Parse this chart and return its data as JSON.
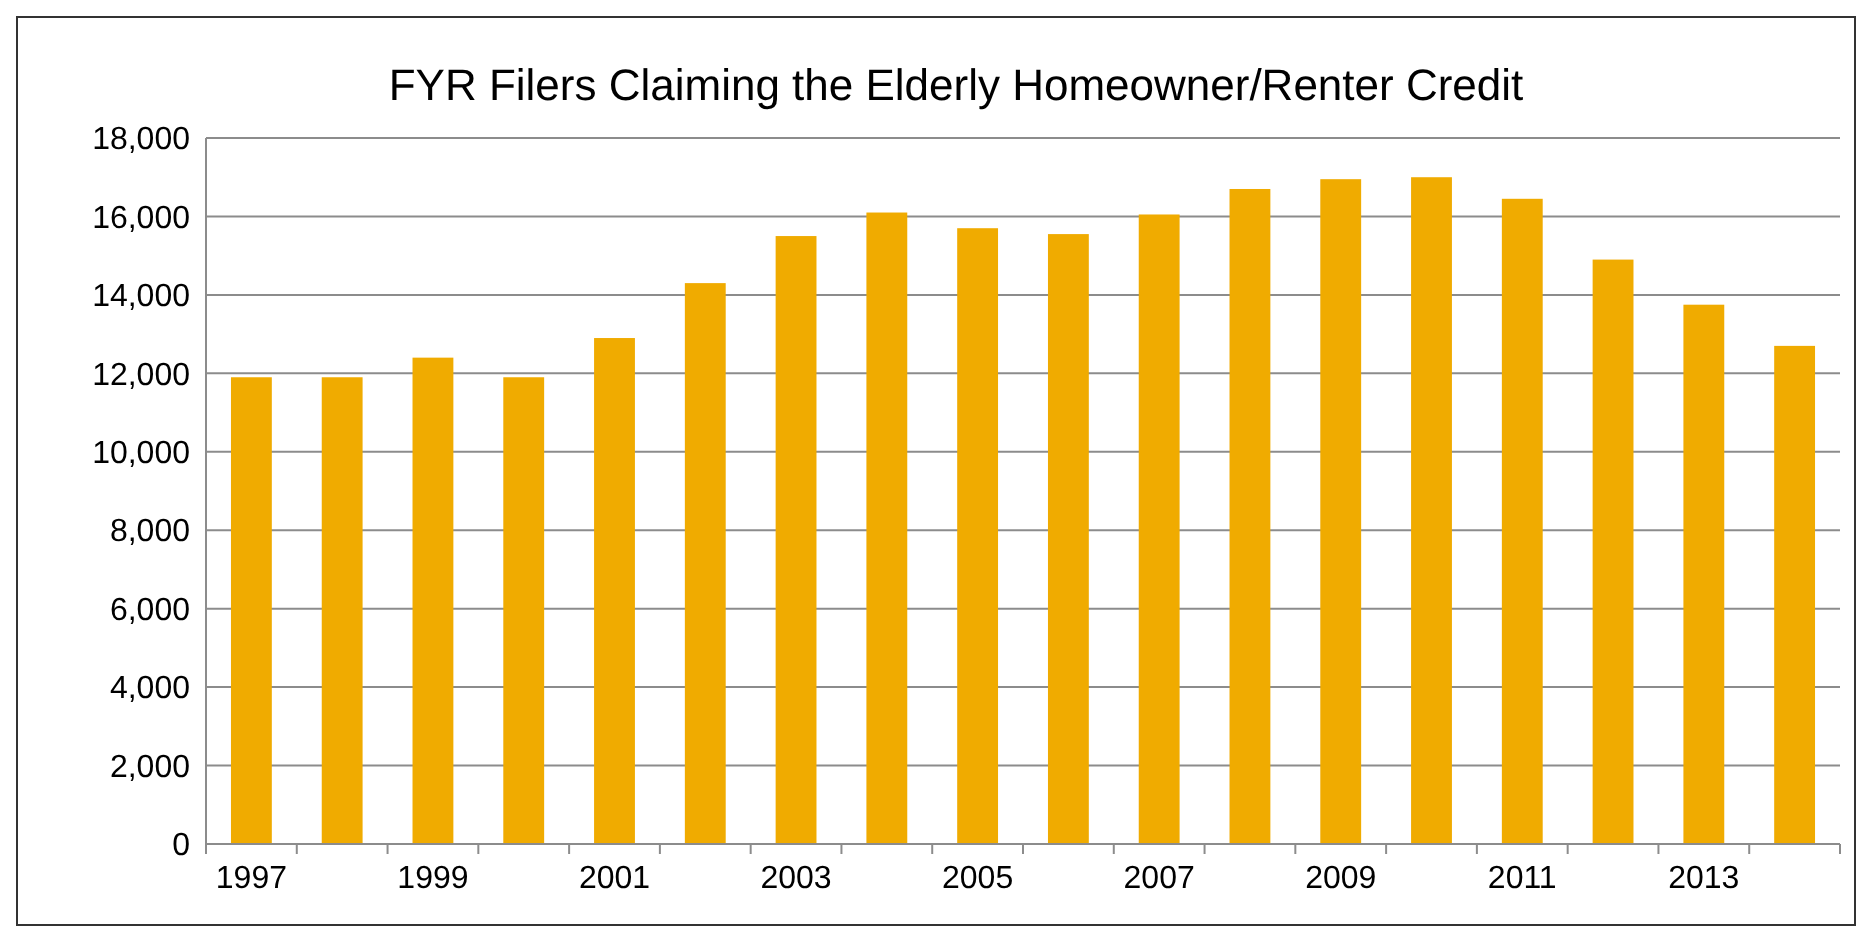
{
  "chart_data": {
    "type": "bar",
    "title": "FYR Filers Claiming the Elderly Homeowner/Renter  Credit",
    "categories": [
      "1997",
      null,
      "1999",
      null,
      "2001",
      null,
      "2003",
      null,
      "2005",
      null,
      "2007",
      null,
      "2009",
      null,
      "2011",
      null,
      "2013",
      null
    ],
    "values": [
      11900,
      11900,
      12400,
      11900,
      12900,
      14300,
      15500,
      16100,
      15700,
      15550,
      16050,
      16700,
      16950,
      17000,
      16450,
      14900,
      13750,
      12700
    ],
    "color": "#f0ab00",
    "ylim": [
      0,
      18000
    ],
    "yticks": [
      {
        "value": 0,
        "label": "0"
      },
      {
        "value": 2000,
        "label": "2,000"
      },
      {
        "value": 4000,
        "label": "4,000"
      },
      {
        "value": 6000,
        "label": "6,000"
      },
      {
        "value": 8000,
        "label": "8,000"
      },
      {
        "value": 10000,
        "label": "10,000"
      },
      {
        "value": 12000,
        "label": "12,000"
      },
      {
        "value": 14000,
        "label": "14,000"
      },
      {
        "value": 16000,
        "label": "16,000"
      },
      {
        "value": 18000,
        "label": "18,000"
      }
    ],
    "grid": "y"
  }
}
